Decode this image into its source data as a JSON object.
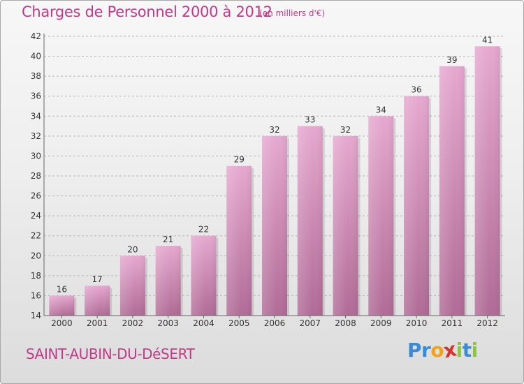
{
  "header": {
    "title": "Charges de Personnel 2000 à 2012",
    "unit": "(en milliers d'€)"
  },
  "footer": {
    "commune": "SAINT-AUBIN-DU-DéSERT",
    "logo_letters": [
      {
        "ch": "P",
        "color": "#3a8ad6"
      },
      {
        "ch": "r",
        "color": "#3a8ad6"
      },
      {
        "ch": "o",
        "color": "#f2a21a"
      },
      {
        "ch": "x",
        "color": "#d6322e"
      },
      {
        "ch": "i",
        "color": "#8cc63f"
      },
      {
        "ch": "t",
        "color": "#3a8ad6"
      },
      {
        "ch": "i",
        "color": "#8cc63f"
      }
    ]
  },
  "colors": {
    "accent": "#c2398a",
    "bar_top": "#e6a8cf",
    "bar_bottom": "#b06b96",
    "grid": "#b5b5b5",
    "axis_text": "#333333"
  },
  "chart_data": {
    "type": "bar",
    "title": "Charges de Personnel 2000 à 2012",
    "subtitle": "(en milliers d'€)",
    "xlabel": "",
    "ylabel": "",
    "categories": [
      "2000",
      "2001",
      "2002",
      "2003",
      "2004",
      "2005",
      "2006",
      "2007",
      "2008",
      "2009",
      "2010",
      "2011",
      "2012"
    ],
    "values": [
      16,
      17,
      20,
      21,
      22,
      29,
      32,
      33,
      32,
      34,
      36,
      39,
      41
    ],
    "ylim": [
      14,
      42
    ],
    "yticks": [
      14,
      16,
      18,
      20,
      22,
      24,
      26,
      28,
      30,
      32,
      34,
      36,
      38,
      40,
      42
    ],
    "grid": true,
    "legend": "none"
  }
}
